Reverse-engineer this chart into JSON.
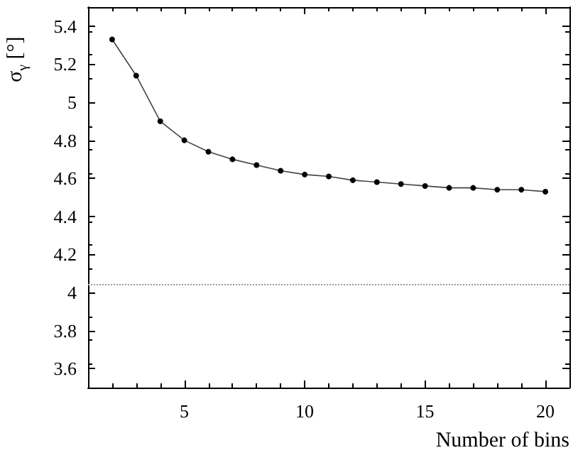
{
  "chart_data": {
    "type": "line",
    "xlabel": "Number of bins",
    "ylabel": "σ$_{γ}$ [°]",
    "x": [
      2,
      3,
      4,
      5,
      6,
      7,
      8,
      9,
      10,
      11,
      12,
      13,
      14,
      15,
      16,
      17,
      18,
      19,
      20
    ],
    "series": [
      {
        "color": "#000000",
        "values": [
          5.33,
          5.14,
          4.9,
          4.8,
          4.74,
          4.7,
          4.67,
          4.64,
          4.62,
          4.61,
          4.59,
          4.58,
          4.57,
          4.56,
          4.55,
          4.55,
          4.54,
          4.54,
          4.53
        ]
      }
    ],
    "xlim": [
      1,
      21
    ],
    "xticks": [
      5,
      10,
      15,
      20
    ],
    "ylim": [
      3.5,
      5.5
    ],
    "yticks": [
      3.6,
      3.8,
      4,
      4.2,
      4.4,
      4.6,
      4.8,
      5,
      5.2,
      5.4
    ],
    "ref_lines": [
      {
        "axis": "y",
        "value": 4.04,
        "color": "#999999",
        "line_style": "dotted"
      }
    ],
    "marker": "circle",
    "line_style": "solid",
    "grid": false
  }
}
